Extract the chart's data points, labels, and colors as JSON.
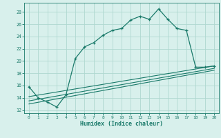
{
  "title": "",
  "xlabel": "Humidex (Indice chaleur)",
  "ylabel": "",
  "background_color": "#d8f0ec",
  "grid_color": "#afd8d0",
  "line_color": "#1a7a6a",
  "xlim": [
    -0.5,
    20.5
  ],
  "ylim": [
    11.5,
    29.5
  ],
  "xticks": [
    0,
    1,
    2,
    3,
    4,
    5,
    6,
    7,
    8,
    9,
    10,
    11,
    12,
    13,
    14,
    15,
    16,
    17,
    18,
    19,
    20
  ],
  "yticks": [
    12,
    14,
    16,
    18,
    20,
    22,
    24,
    26,
    28
  ],
  "main_series_x": [
    0,
    1,
    2,
    3,
    4,
    5,
    6,
    7,
    8,
    9,
    10,
    11,
    12,
    13,
    14,
    15,
    16,
    17,
    18,
    19,
    20
  ],
  "main_series_y": [
    15.8,
    14.0,
    13.3,
    12.5,
    14.5,
    20.4,
    22.3,
    23.0,
    24.2,
    25.0,
    25.3,
    26.7,
    27.3,
    26.8,
    28.5,
    26.8,
    25.3,
    25.0,
    19.0,
    19.0,
    19.2
  ],
  "line1_x": [
    0,
    20
  ],
  "line1_y": [
    13.0,
    18.5
  ],
  "line2_x": [
    0,
    20
  ],
  "line2_y": [
    13.5,
    18.8
  ],
  "line3_x": [
    0,
    20
  ],
  "line3_y": [
    14.2,
    19.2
  ]
}
